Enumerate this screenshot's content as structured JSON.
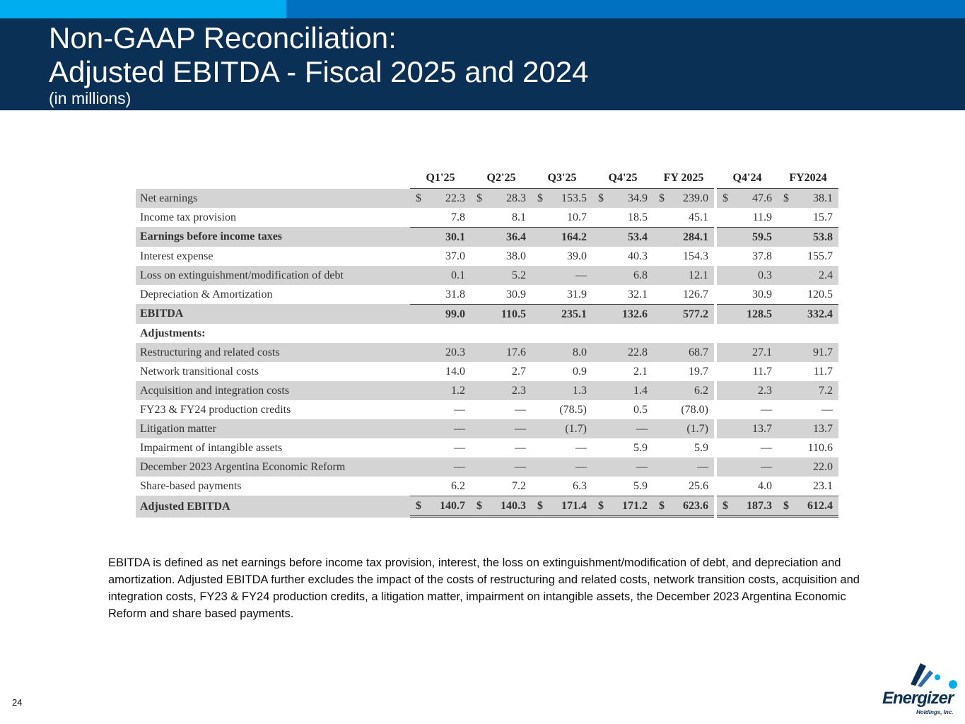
{
  "header": {
    "title_line1": "Non-GAAP Reconciliation:",
    "title_line2": "Adjusted EBITDA - Fiscal 2025 and 2024",
    "subtitle": "(in millions)"
  },
  "table": {
    "columns": [
      "Q1'25",
      "Q2'25",
      "Q3'25",
      "Q4'25",
      "FY 2025",
      "Q4'24",
      "FY2024"
    ],
    "rows": [
      {
        "label": "Net earnings",
        "values": [
          "22.3",
          "28.3",
          "153.5",
          "34.9",
          "239.0",
          "47.6",
          "38.1"
        ],
        "dollar": "$"
      },
      {
        "label": "Income tax provision",
        "values": [
          "7.8",
          "8.1",
          "10.7",
          "18.5",
          "45.1",
          "11.9",
          "15.7"
        ]
      },
      {
        "label": "Earnings before income taxes",
        "values": [
          "30.1",
          "36.4",
          "164.2",
          "53.4",
          "284.1",
          "59.5",
          "53.8"
        ]
      },
      {
        "label": "Interest expense",
        "values": [
          "37.0",
          "38.0",
          "39.0",
          "40.3",
          "154.3",
          "37.8",
          "155.7"
        ]
      },
      {
        "label": "Loss on extinguishment/modification of debt",
        "values": [
          "0.1",
          "5.2",
          "—",
          "6.8",
          "12.1",
          "0.3",
          "2.4"
        ]
      },
      {
        "label": "Depreciation & Amortization",
        "values": [
          "31.8",
          "30.9",
          "31.9",
          "32.1",
          "126.7",
          "30.9",
          "120.5"
        ]
      },
      {
        "label": "EBITDA",
        "values": [
          "99.0",
          "110.5",
          "235.1",
          "132.6",
          "577.2",
          "128.5",
          "332.4"
        ]
      },
      {
        "label": "Adjustments:",
        "values": [
          "",
          "",
          "",
          "",
          "",
          "",
          ""
        ]
      },
      {
        "label": "Restructuring and related costs",
        "values": [
          "20.3",
          "17.6",
          "8.0",
          "22.8",
          "68.7",
          "27.1",
          "91.7"
        ]
      },
      {
        "label": "Network transitional costs",
        "values": [
          "14.0",
          "2.7",
          "0.9",
          "2.1",
          "19.7",
          "11.7",
          "11.7"
        ]
      },
      {
        "label": "Acquisition and integration costs",
        "values": [
          "1.2",
          "2.3",
          "1.3",
          "1.4",
          "6.2",
          "2.3",
          "7.2"
        ]
      },
      {
        "label": "FY23 & FY24 production credits",
        "values": [
          "—",
          "—",
          "(78.5)",
          "0.5",
          "(78.0)",
          "—",
          "—"
        ]
      },
      {
        "label": "Litigation matter",
        "values": [
          "—",
          "—",
          "(1.7)",
          "—",
          "(1.7)",
          "13.7",
          "13.7"
        ]
      },
      {
        "label": "Impairment of intangible assets",
        "values": [
          "—",
          "—",
          "—",
          "5.9",
          "5.9",
          "—",
          "110.6"
        ]
      },
      {
        "label": "December 2023 Argentina Economic Reform",
        "values": [
          "—",
          "—",
          "—",
          "—",
          "—",
          "—",
          "22.0"
        ]
      },
      {
        "label": "Share-based payments",
        "values": [
          "6.2",
          "7.2",
          "6.3",
          "5.9",
          "25.6",
          "4.0",
          "23.1"
        ]
      },
      {
        "label": "Adjusted EBITDA",
        "values": [
          "140.7",
          "140.3",
          "171.4",
          "171.2",
          "623.6",
          "187.3",
          "612.4"
        ],
        "dollar": "$"
      }
    ]
  },
  "footnote": "EBITDA is defined as net earnings before income tax provision, interest, the loss on extinguishment/modification of debt, and depreciation and amortization. Adjusted EBITDA further excludes the impact of the costs of restructuring and related costs, network transition costs, acquisition and integration costs, FY23 & FY24 production credits, a litigation matter, impairment on intangible assets, the December 2023 Argentina Economic Reform and share based payments.",
  "page_number": "24",
  "logo": {
    "name": "Energizer",
    "sub": "Holdings, Inc.",
    "colors": {
      "dark": "#0a3056",
      "accent": "#00aeef"
    }
  },
  "colors": {
    "header_bg": "#0a3056",
    "bar_light": "#00aeef",
    "bar_mid": "#0070c0",
    "row_shade": "#d4d4d4"
  }
}
